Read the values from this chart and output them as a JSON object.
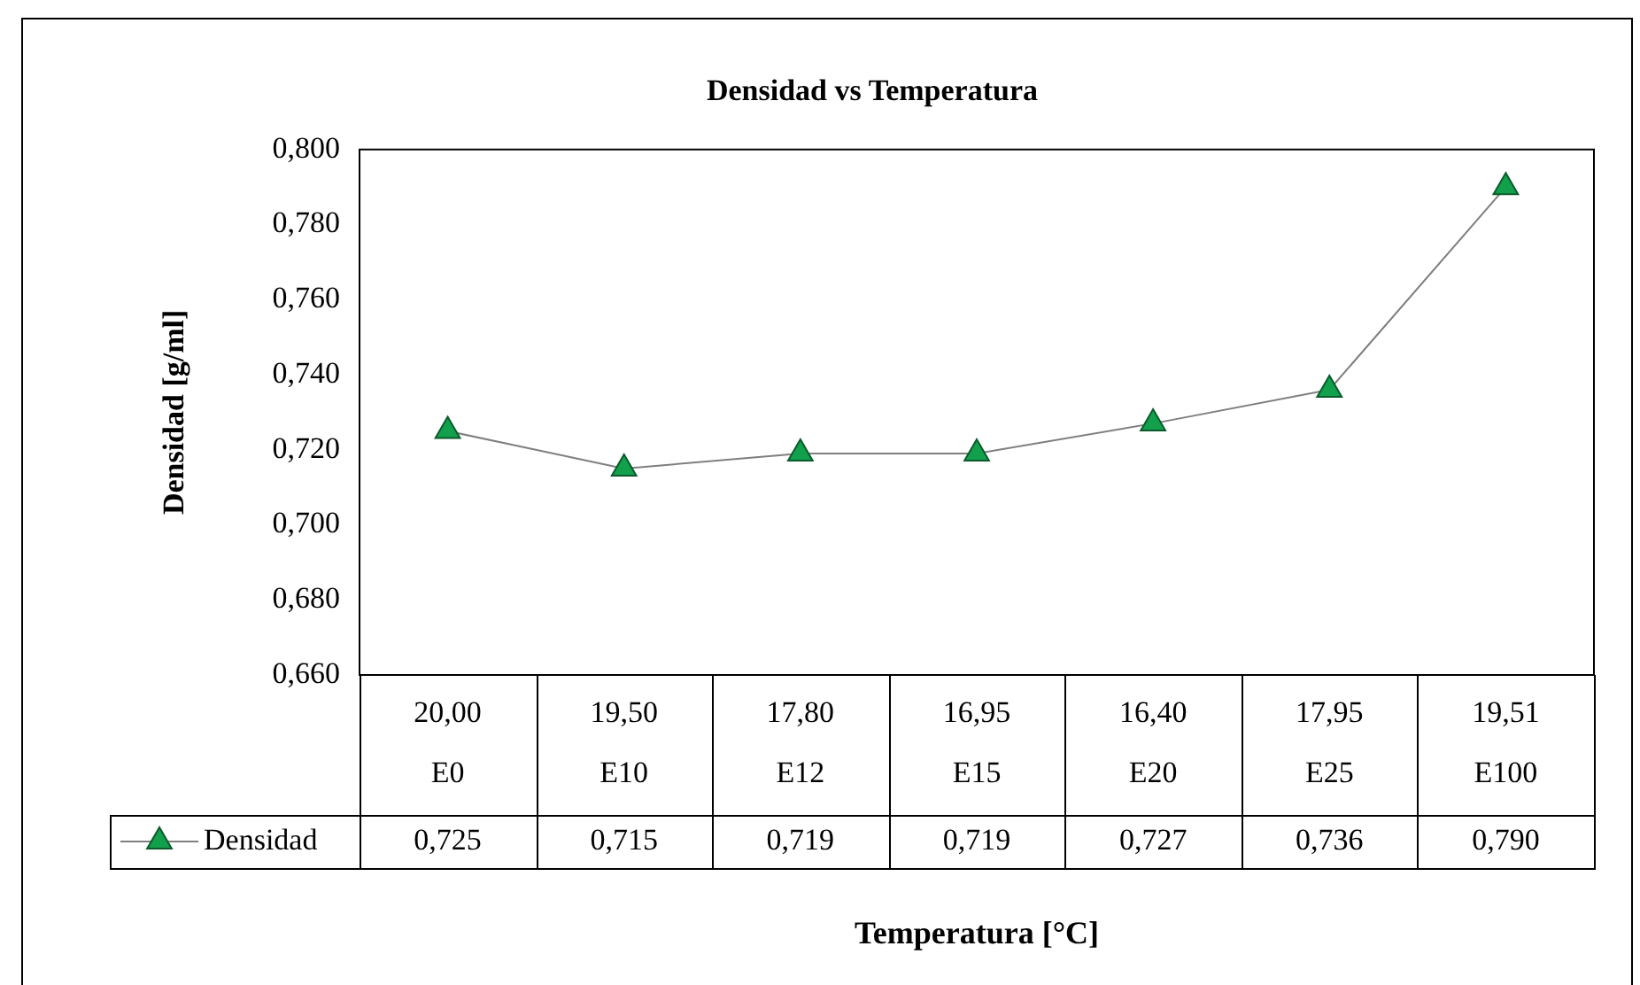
{
  "chart_data": {
    "type": "line",
    "title": "Densidad vs Temperatura",
    "xlabel": "Temperatura [°C]",
    "ylabel": "Densidad [g/ml]",
    "categories": [
      "20,00\nE0",
      "19,50\nE10",
      "17,80\nE12",
      "16,95\nE15",
      "16,40\nE20",
      "17,95\nE25",
      "19,51\nE100"
    ],
    "series": [
      {
        "name": "Densidad",
        "color": "#12a04c",
        "values": [
          0.725,
          0.715,
          0.719,
          0.719,
          0.727,
          0.736,
          0.79
        ],
        "value_labels": [
          "0,725",
          "0,715",
          "0,719",
          "0,719",
          "0,727",
          "0,736",
          "0,790"
        ]
      }
    ],
    "ylim": [
      0.66,
      0.8
    ],
    "yticks": [
      {
        "value": 0.66,
        "label": "0,660"
      },
      {
        "value": 0.68,
        "label": "0,680"
      },
      {
        "value": 0.7,
        "label": "0,700"
      },
      {
        "value": 0.72,
        "label": "0,720"
      },
      {
        "value": 0.74,
        "label": "0,740"
      },
      {
        "value": 0.76,
        "label": "0,760"
      },
      {
        "value": 0.78,
        "label": "0,780"
      },
      {
        "value": 0.8,
        "label": "0,800"
      }
    ],
    "grid": false,
    "legend": "bottom",
    "marker": "triangle",
    "line_style": "solid"
  }
}
